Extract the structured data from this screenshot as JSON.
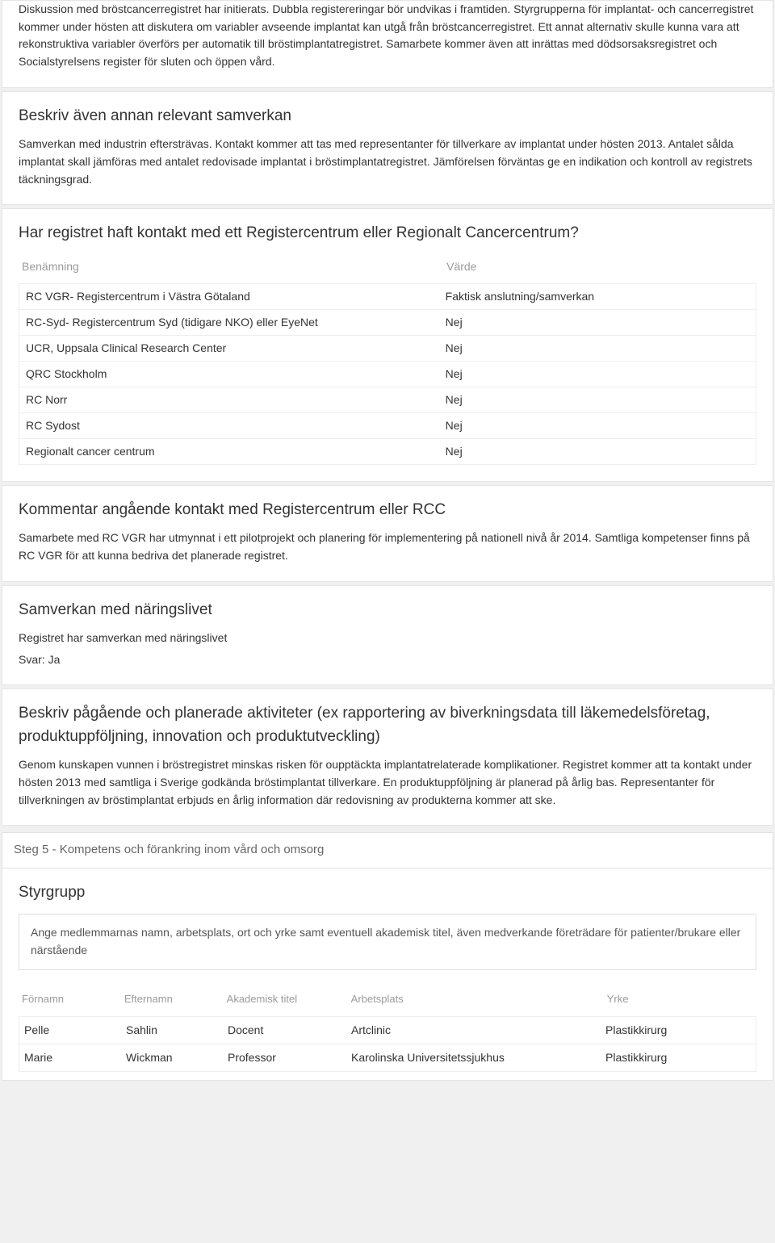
{
  "intro": {
    "text": "Diskussion med bröstcancerregistret har initierats. Dubbla registereringar bör undvikas i framtiden. Styrgrupperna för implantat- och cancerregistret kommer under hösten att diskutera om variabler avseende implantat kan utgå från bröstcancerregistret. Ett annat alternativ skulle kunna vara att rekonstruktiva variabler överförs per automatik till bröstimplantatregistret. Samarbete kommer även att inrättas med dödsorsaksregistret och Socialstyrelsens register för sluten och öppen vård."
  },
  "samverkan": {
    "title": "Beskriv även annan relevant samverkan",
    "text": "Samverkan med industrin eftersträvas. Kontakt kommer att tas med representanter för tillverkare av implantat under hösten 2013. Antalet sålda implantat skall jämföras med antalet redovisade implantat i bröstimplantatregistret. Jämförelsen förväntas ge en indikation och kontroll av registrets täckningsgrad."
  },
  "rcc": {
    "title": "Har registret haft kontakt med ett Registercentrum eller Regionalt Cancercentrum?",
    "col_name": "Benämning",
    "col_value": "Värde",
    "rows": [
      {
        "name": "RC VGR- Registercentrum i Västra Götaland",
        "value": "Faktisk anslutning/samverkan"
      },
      {
        "name": "RC-Syd- Registercentrum Syd (tidigare NKO) eller EyeNet",
        "value": "Nej"
      },
      {
        "name": "UCR, Uppsala Clinical Research Center",
        "value": "Nej"
      },
      {
        "name": "QRC Stockholm",
        "value": "Nej"
      },
      {
        "name": "RC Norr",
        "value": "Nej"
      },
      {
        "name": "RC Sydost",
        "value": "Nej"
      },
      {
        "name": "Regionalt cancer centrum",
        "value": "Nej"
      }
    ]
  },
  "kommentar": {
    "title": "Kommentar angående kontakt med Registercentrum eller RCC",
    "text": "Samarbete med RC VGR har utmynnat i ett pilotprojekt och planering för implementering på nationell nivå år 2014. Samtliga kompetenser finns på RC VGR för att kunna bedriva det planerade registret."
  },
  "naringsliv": {
    "title": "Samverkan med näringslivet",
    "sub": "Registret har samverkan med näringslivet",
    "answer": "Svar: Ja"
  },
  "aktiviteter": {
    "title": "Beskriv pågående och planerade aktiviteter (ex rapportering av biverkningsdata till läkemedelsföretag, produktuppföljning, innovation och produktutveckling)",
    "text": "Genom kunskapen vunnen i bröstregistret minskas risken för oupptäckta implantatrelaterade komplikationer. Registret kommer att ta kontakt under hösten 2013 med samtliga i Sverige godkända bröstimplantat tillverkare. En produktuppföljning är planerad på årlig bas. Representanter för tillverkningen av bröstimplantat erbjuds en årlig information där redovisning av produkterna kommer att ske."
  },
  "step5": {
    "header": "Steg 5 - Kompetens och förankring inom vård och omsorg",
    "styrgrupp_title": "Styrgrupp",
    "note": "Ange medlemmarnas namn, arbetsplats, ort och yrke samt eventuell akademisk titel, även medverkande företrädare för patienter/brukare eller närstående",
    "cols": {
      "fn": "Förnamn",
      "ln": "Efternamn",
      "ti": "Akademisk titel",
      "wp": "Arbetsplats",
      "pr": "Yrke"
    },
    "members": [
      {
        "fn": "Pelle",
        "ln": "Sahlin",
        "ti": "Docent",
        "wp": "Artclinic",
        "pr": "Plastikkirurg"
      },
      {
        "fn": "Marie",
        "ln": "Wickman",
        "ti": "Professor",
        "wp": "Karolinska Universitetssjukhus",
        "pr": "Plastikkirurg"
      }
    ]
  }
}
